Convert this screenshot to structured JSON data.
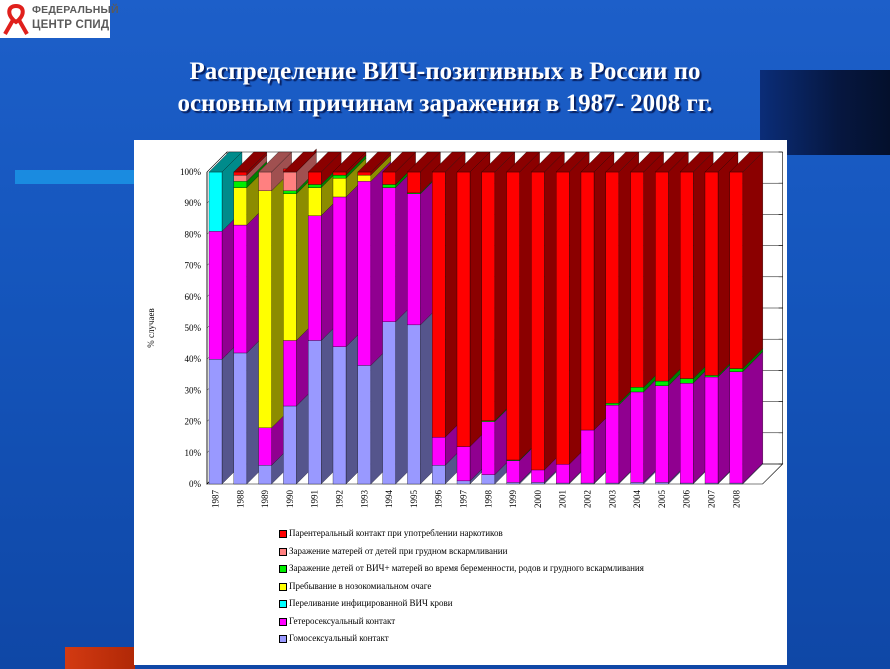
{
  "logo": {
    "line1": "ФЕДЕРАЛЬНЫЙ",
    "line2": "ЦЕНТР СПИД"
  },
  "title": {
    "line1": "Распределение ВИЧ-позитивных в России по",
    "line2": "основным причинам заражения в 1987- 2008 гг."
  },
  "chart_data": {
    "type": "bar",
    "stacked": true,
    "percent": true,
    "three_d": true,
    "ylabel": "% случаев",
    "ylim": [
      0,
      100
    ],
    "yticks": [
      "0%",
      "10%",
      "20%",
      "30%",
      "40%",
      "50%",
      "60%",
      "70%",
      "80%",
      "90%",
      "100%"
    ],
    "grid": true,
    "legend_position": "bottom",
    "categories": [
      "1987",
      "1988",
      "1989",
      "1990",
      "1991",
      "1992",
      "1993",
      "1994",
      "1995",
      "1996",
      "1997",
      "1998",
      "1999",
      "2000",
      "2001",
      "2002",
      "2003",
      "2004",
      "2005",
      "2006",
      "2007",
      "2008"
    ],
    "series": [
      {
        "name": "Гомосексуальный контакт",
        "color": "#9999ff",
        "side": "#55558c",
        "values": [
          40,
          42,
          6,
          25,
          46,
          44,
          38,
          52,
          51,
          6,
          1,
          3,
          0.5,
          0.5,
          0.3,
          0.3,
          0.3,
          0.5,
          0.5,
          0.3,
          0.3,
          0.3
        ]
      },
      {
        "name": "Гетеросексуальный контакт",
        "color": "#ff00ff",
        "side": "#900090",
        "values": [
          41,
          41,
          12,
          21,
          40,
          48,
          59,
          43,
          42,
          9,
          11,
          17,
          7,
          4,
          6,
          17,
          25,
          29,
          31,
          32,
          34,
          35.7
        ]
      },
      {
        "name": "Переливание  инфицированной ВИЧ крови",
        "color": "#00ffff",
        "side": "#008b8b",
        "values": [
          19,
          0,
          0,
          0,
          0,
          0,
          0,
          0,
          0,
          0,
          0,
          0,
          0,
          0,
          0,
          0,
          0,
          0,
          0,
          0,
          0,
          0
        ]
      },
      {
        "name": "Пребывание в нозокомиальном очаге",
        "color": "#ffff00",
        "side": "#8c8c00",
        "values": [
          0,
          12,
          76,
          47,
          9,
          6,
          2,
          0,
          0,
          0,
          0,
          0,
          0,
          0,
          0,
          0,
          0,
          0,
          0,
          0,
          0,
          0
        ]
      },
      {
        "name": "Заражение детей от ВИЧ+ матерей во время беременности, родов и грудного вскармливания",
        "color": "#00ee00",
        "side": "#008000",
        "values": [
          0,
          2,
          0,
          1,
          1,
          1,
          0,
          1,
          0.3,
          0,
          0,
          0.3,
          0.2,
          0,
          0,
          0,
          0.6,
          1.5,
          1.5,
          1.5,
          0.5,
          1
        ]
      },
      {
        "name": "Заражение матерей от детей при грудном вскармливании",
        "color": "#ff8080",
        "side": "#a05050",
        "values": [
          0,
          2,
          6,
          6,
          0,
          0,
          0,
          0,
          0,
          0,
          0,
          0,
          0,
          0,
          0,
          0,
          0,
          0,
          0,
          0,
          0,
          0
        ]
      },
      {
        "name": "Парентеральный контакт при употреблении наркотиков",
        "color": "#ff0000",
        "side": "#8b0000",
        "values": [
          0,
          1,
          0,
          1,
          4,
          1,
          1,
          4,
          6.7,
          85,
          88,
          79.7,
          92.3,
          95.5,
          93.7,
          82.7,
          74.1,
          69,
          67,
          66.2,
          65.2,
          63
        ]
      }
    ]
  }
}
